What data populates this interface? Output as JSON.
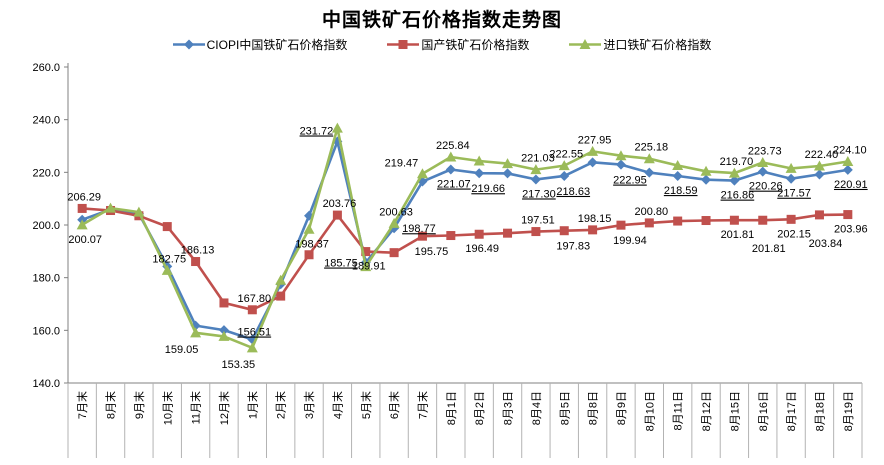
{
  "chart_data": {
    "type": "line",
    "title": "中国铁矿石价格指数走势图",
    "ylim": [
      140.0,
      260.0
    ],
    "ytick_step": 20,
    "ytick_labels": [
      "260.0",
      "240.0",
      "220.0",
      "200.0",
      "180.0",
      "160.0",
      "140.0"
    ],
    "grid": false,
    "legend_position": "top",
    "categories": [
      "7月末",
      "8月末",
      "9月末",
      "10月末",
      "11月末",
      "12月末",
      "1月末",
      "2月末",
      "3月末",
      "4月末",
      "5月末",
      "6月末",
      "7月末",
      "8月1日",
      "8月2日",
      "8月3日",
      "8月4日",
      "8月5日",
      "8月8日",
      "8月9日",
      "8月10日",
      "8月11日",
      "8月12日",
      "8月15日",
      "8月16日",
      "8月17日",
      "8月18日",
      "8月19日"
    ],
    "series": [
      {
        "name": "CIOPI中国铁矿石价格指数",
        "color": "#4F81BD",
        "marker": "diamond",
        "labels_underlined": true,
        "values": [
          202.0,
          205.9,
          204.3,
          184.3,
          161.8,
          160.1,
          156.51,
          177.5,
          203.5,
          231.72,
          185.75,
          198.77,
          216.5,
          221.07,
          219.66,
          219.6,
          217.3,
          218.63,
          223.8,
          222.95,
          219.9,
          218.59,
          217.2,
          216.86,
          220.26,
          217.57,
          219.2,
          220.91
        ],
        "point_labels": [
          {
            "i": 6,
            "text": "156.51",
            "pos": "above-near"
          },
          {
            "i": 9,
            "text": "231.72",
            "pos": "above-left"
          },
          {
            "i": 10,
            "text": "185.75",
            "pos": "left"
          },
          {
            "i": 11,
            "text": "198.77",
            "pos": "right"
          },
          {
            "i": 13,
            "text": "221.07",
            "pos": "below"
          },
          {
            "i": 14,
            "text": "219.66",
            "pos": "below-right"
          },
          {
            "i": 16,
            "text": "217.30",
            "pos": "below"
          },
          {
            "i": 17,
            "text": "218.63",
            "pos": "below-right"
          },
          {
            "i": 19,
            "text": "222.95",
            "pos": "below-right"
          },
          {
            "i": 21,
            "text": "218.59",
            "pos": "below"
          },
          {
            "i": 23,
            "text": "216.86",
            "pos": "below"
          },
          {
            "i": 24,
            "text": "220.26",
            "pos": "below"
          },
          {
            "i": 25,
            "text": "217.57",
            "pos": "below"
          },
          {
            "i": 27,
            "text": "220.91",
            "pos": "below"
          }
        ]
      },
      {
        "name": "国产铁矿石价格指数",
        "color": "#C0504D",
        "marker": "square",
        "labels_underlined": false,
        "values": [
          206.29,
          205.5,
          203.5,
          199.4,
          186.13,
          170.4,
          167.8,
          173.0,
          188.7,
          203.76,
          189.91,
          189.5,
          195.75,
          196.0,
          196.49,
          196.9,
          197.51,
          197.83,
          198.15,
          199.94,
          200.8,
          201.5,
          201.7,
          201.81,
          201.81,
          202.15,
          203.84,
          203.96
        ],
        "point_labels": [
          {
            "i": 0,
            "text": "206.29",
            "pos": "above"
          },
          {
            "i": 4,
            "text": "186.13",
            "pos": "above"
          },
          {
            "i": 6,
            "text": "167.80",
            "pos": "above"
          },
          {
            "i": 9,
            "text": "203.76",
            "pos": "above"
          },
          {
            "i": 10,
            "text": "189.91",
            "pos": "below"
          },
          {
            "i": 12,
            "text": "195.75",
            "pos": "below-right"
          },
          {
            "i": 14,
            "text": "196.49",
            "pos": "below"
          },
          {
            "i": 16,
            "text": "197.51",
            "pos": "above"
          },
          {
            "i": 17,
            "text": "197.83",
            "pos": "below-right"
          },
          {
            "i": 18,
            "text": "198.15",
            "pos": "above"
          },
          {
            "i": 19,
            "text": "199.94",
            "pos": "below-right"
          },
          {
            "i": 20,
            "text": "200.80",
            "pos": "above"
          },
          {
            "i": 23,
            "text": "201.81",
            "pos": "below"
          },
          {
            "i": 24,
            "text": "201.81",
            "pos": "below2"
          },
          {
            "i": 25,
            "text": "202.15",
            "pos": "below"
          },
          {
            "i": 26,
            "text": "203.84",
            "pos": "below2"
          },
          {
            "i": 27,
            "text": "203.96",
            "pos": "below"
          }
        ]
      },
      {
        "name": "进口铁矿石价格指数",
        "color": "#9BBB59",
        "marker": "triangle",
        "labels_underlined": false,
        "values": [
          200.07,
          206.4,
          204.9,
          182.75,
          159.05,
          157.7,
          153.35,
          179.0,
          198.37,
          236.8,
          184.2,
          200.63,
          219.47,
          225.84,
          224.3,
          223.3,
          221.03,
          222.55,
          227.95,
          226.3,
          225.18,
          222.6,
          220.4,
          219.7,
          223.73,
          221.5,
          222.4,
          224.1
        ],
        "point_labels": [
          {
            "i": 0,
            "text": "200.07",
            "pos": "below"
          },
          {
            "i": 3,
            "text": "182.75",
            "pos": "above"
          },
          {
            "i": 4,
            "text": "159.05",
            "pos": "below-left"
          },
          {
            "i": 6,
            "text": "153.35",
            "pos": "below-left"
          },
          {
            "i": 8,
            "text": "198.37",
            "pos": "below"
          },
          {
            "i": 11,
            "text": "200.63",
            "pos": "above"
          },
          {
            "i": 12,
            "text": "219.47",
            "pos": "above-left"
          },
          {
            "i": 13,
            "text": "225.84",
            "pos": "above"
          },
          {
            "i": 16,
            "text": "221.03",
            "pos": "above"
          },
          {
            "i": 17,
            "text": "222.55",
            "pos": "above"
          },
          {
            "i": 18,
            "text": "227.95",
            "pos": "above"
          },
          {
            "i": 20,
            "text": "225.18",
            "pos": "above"
          },
          {
            "i": 23,
            "text": "219.70",
            "pos": "above"
          },
          {
            "i": 24,
            "text": "223.73",
            "pos": "above"
          },
          {
            "i": 26,
            "text": "222.40",
            "pos": "above"
          },
          {
            "i": 27,
            "text": "224.10",
            "pos": "above"
          }
        ]
      }
    ]
  }
}
